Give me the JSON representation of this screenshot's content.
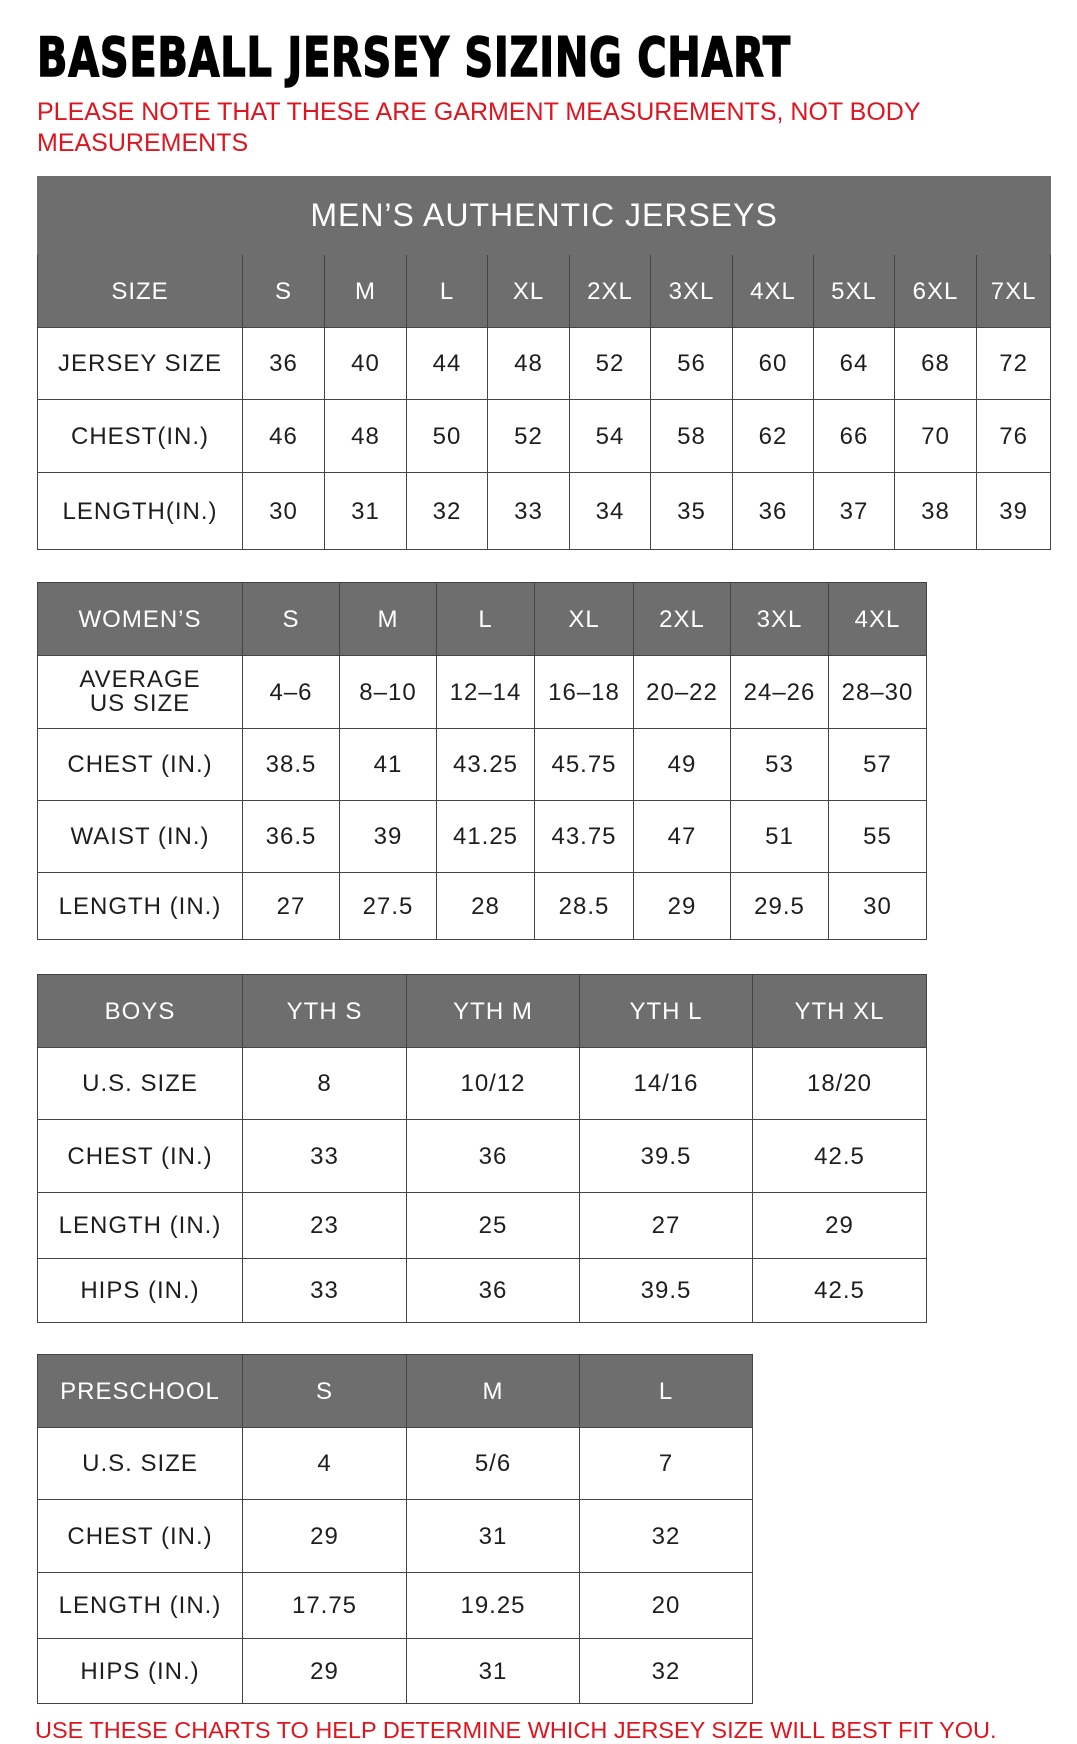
{
  "title": "BASEBALL JERSEY SIZING CHART",
  "note": "PLEASE NOTE THAT THESE ARE GARMENT MEASUREMENTS, NOT BODY MEASUREMENTS",
  "footer": "USE THESE CHARTS TO HELP DETERMINE WHICH JERSEY SIZE WILL BEST FIT YOU.",
  "colors": {
    "header_gray": "#6e6e6e",
    "note_red": "#e0141e"
  },
  "mens": {
    "title": "MEN’S AUTHENTIC JERSEYS",
    "header": [
      "SIZE",
      "S",
      "M",
      "L",
      "XL",
      "2XL",
      "3XL",
      "4XL",
      "5XL",
      "6XL",
      "7XL"
    ],
    "rows": [
      [
        "JERSEY SIZE",
        "36",
        "40",
        "44",
        "48",
        "52",
        "56",
        "60",
        "64",
        "68",
        "72"
      ],
      [
        "CHEST(IN.)",
        "46",
        "48",
        "50",
        "52",
        "54",
        "58",
        "62",
        "66",
        "70",
        "76"
      ],
      [
        "LENGTH(IN.)",
        "30",
        "31",
        "32",
        "33",
        "34",
        "35",
        "36",
        "37",
        "38",
        "39"
      ]
    ]
  },
  "womens": {
    "header": [
      "WOMEN’S",
      "S",
      "M",
      "L",
      "XL",
      "2XL",
      "3XL",
      "4XL"
    ],
    "rows": [
      [
        "AVERAGE US SIZE",
        "4–6",
        "8–10",
        "12–14",
        "16–18",
        "20–22",
        "24–26",
        "28–30"
      ],
      [
        "CHEST (IN.)",
        "38.5",
        "41",
        "43.25",
        "45.75",
        "49",
        "53",
        "57"
      ],
      [
        "WAIST (IN.)",
        "36.5",
        "39",
        "41.25",
        "43.75",
        "47",
        "51",
        "55"
      ],
      [
        "LENGTH (IN.)",
        "27",
        "27.5",
        "28",
        "28.5",
        "29",
        "29.5",
        "30"
      ]
    ]
  },
  "boys": {
    "header": [
      "BOYS",
      "YTH S",
      "YTH M",
      "YTH L",
      "YTH XL"
    ],
    "rows": [
      [
        "U.S. SIZE",
        "8",
        "10/12",
        "14/16",
        "18/20"
      ],
      [
        "CHEST (IN.)",
        "33",
        "36",
        "39.5",
        "42.5"
      ],
      [
        "LENGTH (IN.)",
        "23",
        "25",
        "27",
        "29"
      ],
      [
        "HIPS (IN.)",
        "33",
        "36",
        "39.5",
        "42.5"
      ]
    ]
  },
  "preschool": {
    "header": [
      "PRESCHOOL",
      "S",
      "M",
      "L"
    ],
    "rows": [
      [
        "U.S. SIZE",
        "4",
        "5/6",
        "7"
      ],
      [
        "CHEST (IN.)",
        "29",
        "31",
        "32"
      ],
      [
        "LENGTH (IN.)",
        "17.75",
        "19.25",
        "20"
      ],
      [
        "HIPS (IN.)",
        "29",
        "31",
        "32"
      ]
    ]
  }
}
